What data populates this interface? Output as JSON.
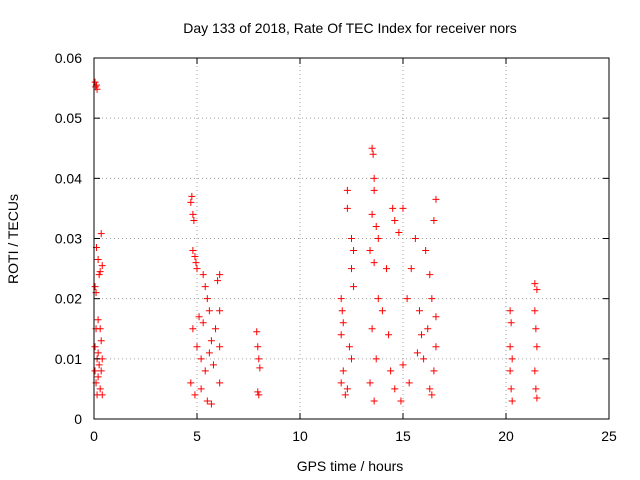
{
  "chart_data": {
    "type": "scatter",
    "title": "Day 133 of 2018, Rate Of TEC Index for receiver nors",
    "xlabel": "GPS time / hours",
    "ylabel": "ROTI / TECUs",
    "xlim": [
      0,
      25
    ],
    "ylim": [
      0,
      0.06
    ],
    "xticks": [
      0,
      5,
      10,
      15,
      20,
      25
    ],
    "yticks": [
      0,
      0.01,
      0.02,
      0.03,
      0.04,
      0.05,
      0.06
    ],
    "xtick_labels": [
      "0",
      "5",
      "10",
      "15",
      "20",
      "25"
    ],
    "ytick_labels": [
      "0",
      "0.01",
      "0.02",
      "0.03",
      "0.04",
      "0.05",
      "0.06"
    ],
    "grid": true,
    "marker": "plus",
    "color": "#ff0000",
    "series": [
      {
        "points": [
          [
            0.05,
            0.056
          ],
          [
            0.08,
            0.0552
          ],
          [
            0.12,
            0.0555
          ],
          [
            0.15,
            0.0548
          ],
          [
            0.05,
            0.022
          ],
          [
            0.1,
            0.021
          ],
          [
            0.12,
            0.0285
          ],
          [
            0.2,
            0.0265
          ],
          [
            0.25,
            0.024
          ],
          [
            0.3,
            0.0245
          ],
          [
            0.35,
            0.0308
          ],
          [
            0.4,
            0.0255
          ],
          [
            0.05,
            0.012
          ],
          [
            0.1,
            0.015
          ],
          [
            0.15,
            0.01
          ],
          [
            0.2,
            0.0165
          ],
          [
            0.3,
            0.015
          ],
          [
            0.35,
            0.013
          ],
          [
            0.1,
            0.006
          ],
          [
            0.2,
            0.007
          ],
          [
            0.3,
            0.005
          ],
          [
            0.35,
            0.008
          ],
          [
            0.4,
            0.004
          ],
          [
            0.15,
            0.004
          ],
          [
            0.25,
            0.009
          ],
          [
            0.05,
            0.008
          ],
          [
            0.4,
            0.01
          ],
          [
            0.2,
            0.011
          ],
          [
            4.7,
            0.036
          ],
          [
            4.75,
            0.037
          ],
          [
            4.8,
            0.034
          ],
          [
            4.85,
            0.033
          ],
          [
            4.8,
            0.028
          ],
          [
            4.9,
            0.027
          ],
          [
            4.95,
            0.026
          ],
          [
            5.0,
            0.025
          ],
          [
            5.3,
            0.024
          ],
          [
            5.4,
            0.022
          ],
          [
            5.5,
            0.02
          ],
          [
            5.6,
            0.018
          ],
          [
            6.1,
            0.024
          ],
          [
            6.0,
            0.023
          ],
          [
            6.1,
            0.018
          ],
          [
            6.1,
            0.012
          ],
          [
            6.1,
            0.006
          ],
          [
            5.2,
            0.005
          ],
          [
            5.5,
            0.003
          ],
          [
            5.7,
            0.0025
          ],
          [
            4.8,
            0.015
          ],
          [
            5.0,
            0.012
          ],
          [
            5.2,
            0.01
          ],
          [
            5.4,
            0.008
          ],
          [
            5.6,
            0.011
          ],
          [
            5.8,
            0.009
          ],
          [
            5.1,
            0.017
          ],
          [
            5.3,
            0.016
          ],
          [
            4.7,
            0.006
          ],
          [
            4.9,
            0.004
          ],
          [
            5.7,
            0.013
          ],
          [
            5.9,
            0.015
          ],
          [
            7.9,
            0.0145
          ],
          [
            7.95,
            0.012
          ],
          [
            8.0,
            0.01
          ],
          [
            8.05,
            0.0085
          ],
          [
            7.95,
            0.0045
          ],
          [
            8.0,
            0.004
          ],
          [
            12.0,
            0.02
          ],
          [
            12.05,
            0.018
          ],
          [
            12.1,
            0.016
          ],
          [
            12.0,
            0.014
          ],
          [
            12.1,
            0.008
          ],
          [
            12.0,
            0.006
          ],
          [
            12.2,
            0.004
          ],
          [
            12.3,
            0.038
          ],
          [
            12.3,
            0.035
          ],
          [
            12.5,
            0.03
          ],
          [
            12.6,
            0.028
          ],
          [
            12.5,
            0.025
          ],
          [
            12.6,
            0.022
          ],
          [
            12.4,
            0.012
          ],
          [
            12.5,
            0.01
          ],
          [
            12.3,
            0.005
          ],
          [
            13.5,
            0.045
          ],
          [
            13.55,
            0.044
          ],
          [
            13.6,
            0.04
          ],
          [
            13.6,
            0.038
          ],
          [
            13.5,
            0.034
          ],
          [
            13.7,
            0.032
          ],
          [
            13.8,
            0.03
          ],
          [
            13.4,
            0.028
          ],
          [
            13.6,
            0.026
          ],
          [
            13.8,
            0.02
          ],
          [
            13.5,
            0.015
          ],
          [
            13.7,
            0.01
          ],
          [
            13.4,
            0.006
          ],
          [
            13.6,
            0.003
          ],
          [
            14.0,
            0.018
          ],
          [
            14.2,
            0.025
          ],
          [
            14.5,
            0.035
          ],
          [
            14.6,
            0.033
          ],
          [
            14.8,
            0.031
          ],
          [
            15.0,
            0.035
          ],
          [
            14.3,
            0.014
          ],
          [
            14.4,
            0.008
          ],
          [
            14.6,
            0.005
          ],
          [
            14.9,
            0.003
          ],
          [
            15.2,
            0.02
          ],
          [
            15.4,
            0.025
          ],
          [
            15.6,
            0.03
          ],
          [
            15.8,
            0.018
          ],
          [
            15.0,
            0.009
          ],
          [
            15.3,
            0.006
          ],
          [
            15.7,
            0.011
          ],
          [
            15.9,
            0.014
          ],
          [
            16.1,
            0.028
          ],
          [
            16.3,
            0.024
          ],
          [
            16.6,
            0.0365
          ],
          [
            16.5,
            0.033
          ],
          [
            16.4,
            0.02
          ],
          [
            16.2,
            0.015
          ],
          [
            16.5,
            0.008
          ],
          [
            16.3,
            0.005
          ],
          [
            16.6,
            0.012
          ],
          [
            16.0,
            0.01
          ],
          [
            16.4,
            0.004
          ],
          [
            16.6,
            0.017
          ],
          [
            20.2,
            0.018
          ],
          [
            20.25,
            0.016
          ],
          [
            20.2,
            0.012
          ],
          [
            20.3,
            0.01
          ],
          [
            20.2,
            0.008
          ],
          [
            20.25,
            0.005
          ],
          [
            20.3,
            0.003
          ],
          [
            21.4,
            0.0225
          ],
          [
            21.5,
            0.0215
          ],
          [
            21.4,
            0.018
          ],
          [
            21.45,
            0.015
          ],
          [
            21.5,
            0.012
          ],
          [
            21.4,
            0.008
          ],
          [
            21.45,
            0.005
          ],
          [
            21.5,
            0.0035
          ]
        ]
      }
    ]
  }
}
